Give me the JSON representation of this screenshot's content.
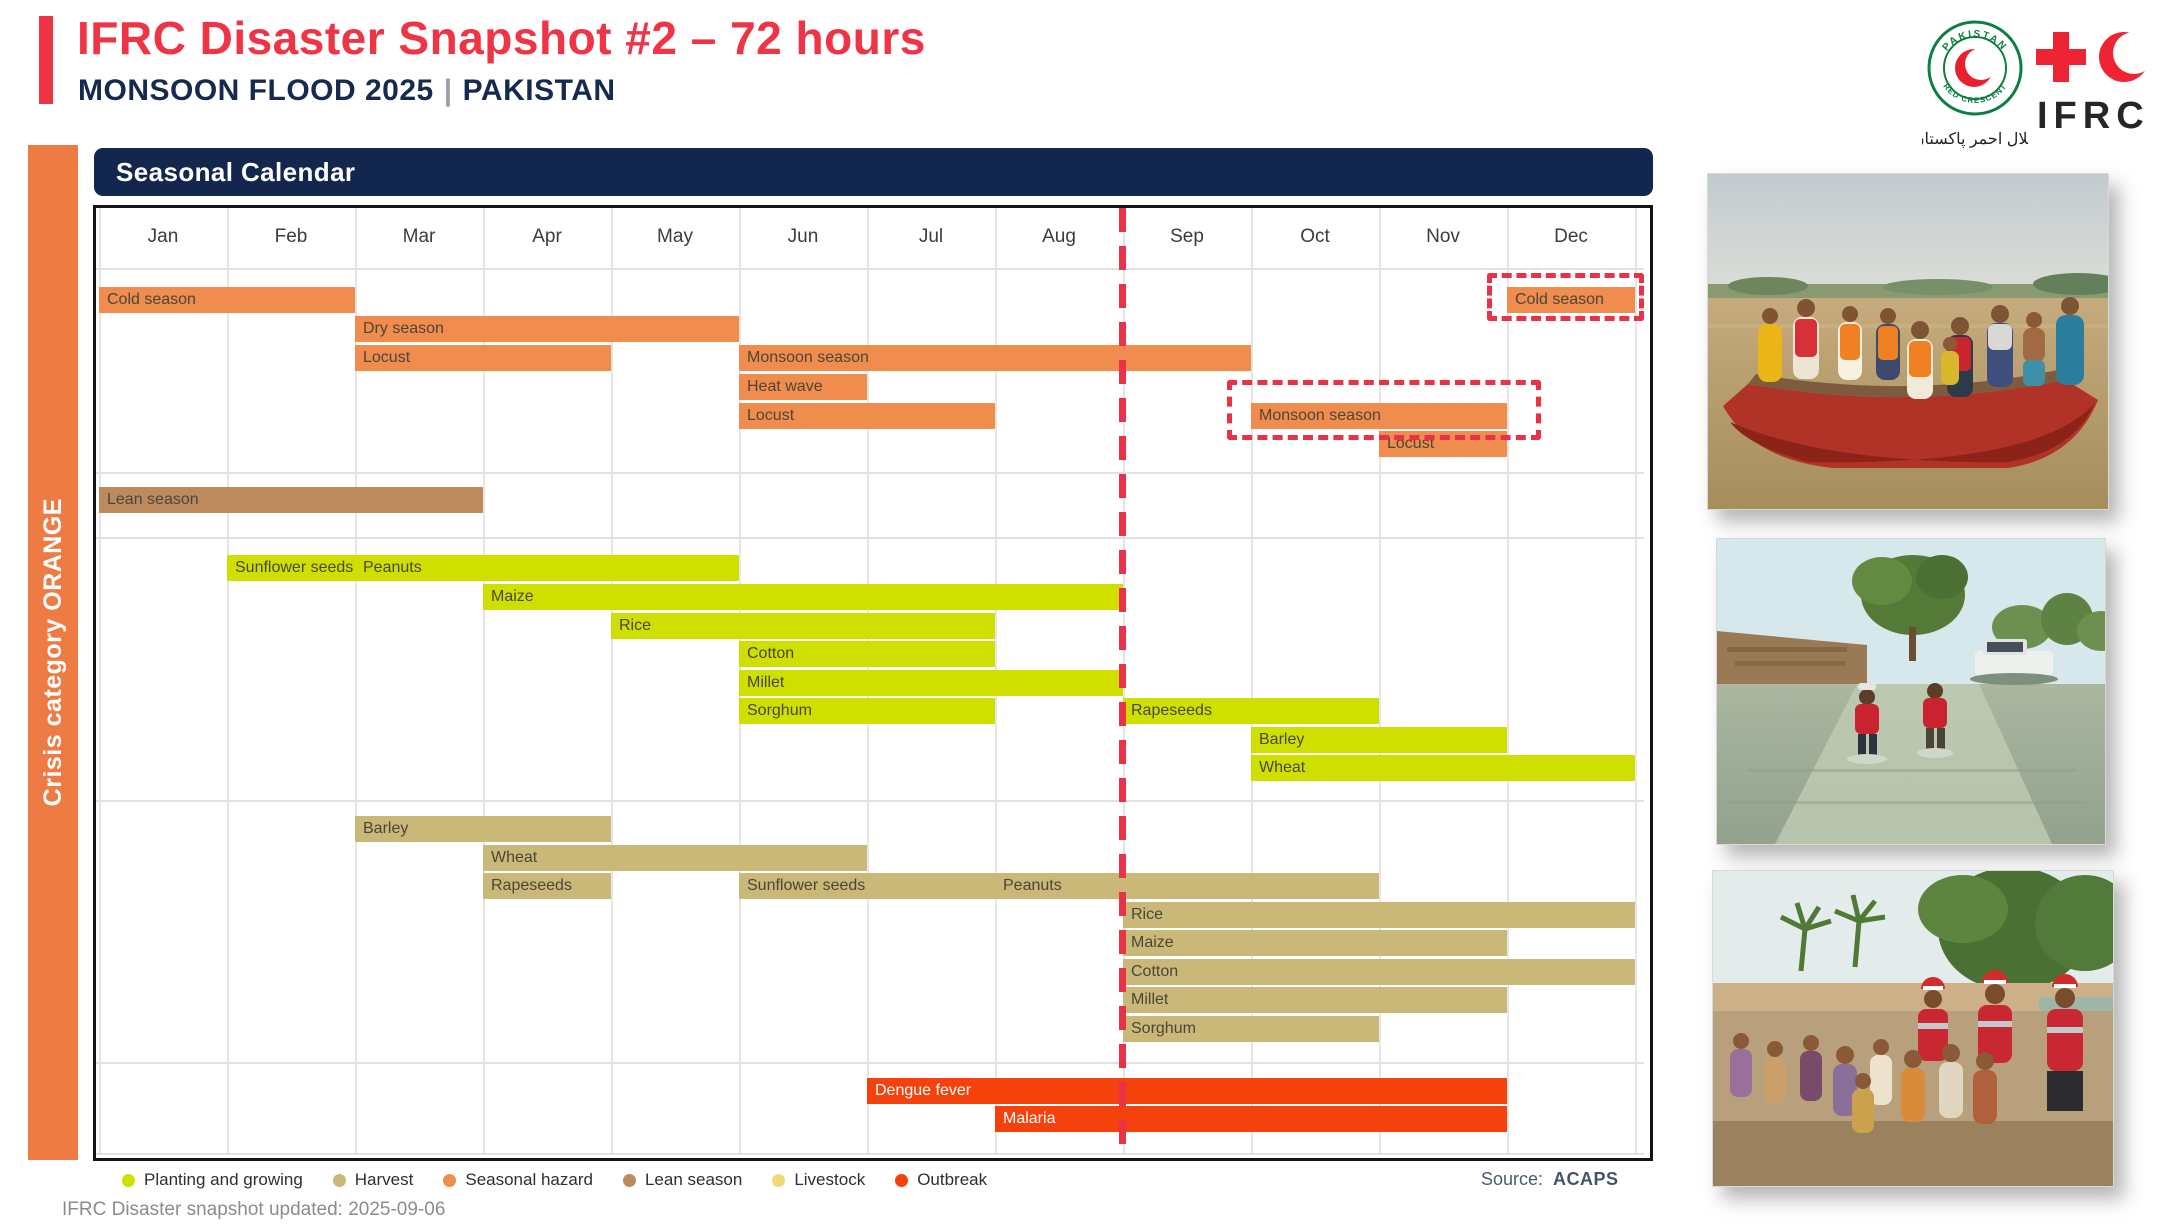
{
  "header": {
    "title": "IFRC Disaster Snapshot #2 – 72 hours",
    "subtitle_event": "MONSOON FLOOD 2025",
    "subtitle_sep": "|",
    "subtitle_country": "PAKISTAN"
  },
  "logos": {
    "prc_ring_top": "PAKISTAN",
    "prc_ring_bottom": "RED CRESCENT",
    "prc_urdu": "ہلال احمر پاکستان",
    "ifrc_label": "IFRC"
  },
  "sidebar": {
    "label": "Crisis category ORANGE"
  },
  "panel": {
    "title": "Seasonal Calendar"
  },
  "chart_data": {
    "type": "gantt",
    "title": "Seasonal Calendar",
    "months": [
      "Jan",
      "Feb",
      "Mar",
      "Apr",
      "May",
      "Jun",
      "Jul",
      "Aug",
      "Sep",
      "Oct",
      "Nov",
      "Dec"
    ],
    "today_line": {
      "at_month_start": "Sep",
      "style": "red-dashed-vertical"
    },
    "categories": {
      "hazard": {
        "label": "Seasonal hazard",
        "color": "#F08C4D"
      },
      "lean": {
        "label": "Lean season",
        "color": "#BC8A5D"
      },
      "planting": {
        "label": "Planting and growing",
        "color": "#CFE000"
      },
      "harvest": {
        "label": "Harvest",
        "color": "#C9B877"
      },
      "livestock": {
        "label": "Livestock",
        "color": "#F2D878"
      },
      "outbreak": {
        "label": "Outbreak",
        "color": "#F5420D"
      }
    },
    "rows": [
      {
        "bars": [
          {
            "label": "Cold season",
            "start": 1,
            "end": 2,
            "category": "hazard"
          },
          {
            "label": "Cold season",
            "start": 12,
            "end": 12,
            "category": "hazard",
            "highlighted": true
          }
        ]
      },
      {
        "bars": [
          {
            "label": "Dry season",
            "start": 3,
            "end": 5,
            "category": "hazard"
          }
        ]
      },
      {
        "bars": [
          {
            "label": "Locust",
            "start": 3,
            "end": 4,
            "category": "hazard"
          },
          {
            "label": "Monsoon season",
            "start": 6,
            "end": 9,
            "category": "hazard"
          }
        ]
      },
      {
        "bars": [
          {
            "label": "Heat wave",
            "start": 6,
            "end": 6,
            "category": "hazard"
          }
        ]
      },
      {
        "bars": [
          {
            "label": "Locust",
            "start": 6,
            "end": 7,
            "category": "hazard"
          },
          {
            "label": "Monsoon season",
            "start": 10,
            "end": 11,
            "category": "hazard",
            "highlighted": true
          }
        ]
      },
      {
        "bars": [
          {
            "label": "Locust",
            "start": 11,
            "end": 11,
            "category": "hazard"
          }
        ]
      },
      {
        "bars": [
          {
            "label": "Lean season",
            "start": 1,
            "end": 3,
            "category": "lean"
          }
        ]
      },
      {
        "bars": [
          {
            "label": "Sunflower seeds",
            "start": 2,
            "end": 2,
            "category": "planting"
          },
          {
            "label": "Peanuts",
            "start": 3,
            "end": 5,
            "category": "planting"
          }
        ]
      },
      {
        "bars": [
          {
            "label": "Maize",
            "start": 4,
            "end": 8,
            "category": "planting"
          }
        ]
      },
      {
        "bars": [
          {
            "label": "Rice",
            "start": 5,
            "end": 7,
            "category": "planting"
          }
        ]
      },
      {
        "bars": [
          {
            "label": "Cotton",
            "start": 6,
            "end": 7,
            "category": "planting"
          }
        ]
      },
      {
        "bars": [
          {
            "label": "Millet",
            "start": 6,
            "end": 8,
            "category": "planting"
          }
        ]
      },
      {
        "bars": [
          {
            "label": "Sorghum",
            "start": 6,
            "end": 7,
            "category": "planting"
          },
          {
            "label": "Rapeseeds",
            "start": 9,
            "end": 10,
            "category": "planting"
          }
        ]
      },
      {
        "bars": [
          {
            "label": "Barley",
            "start": 10,
            "end": 11,
            "category": "planting"
          }
        ]
      },
      {
        "bars": [
          {
            "label": "Wheat",
            "start": 10,
            "end": 12,
            "category": "planting"
          }
        ]
      },
      {
        "bars": [
          {
            "label": "Barley",
            "start": 3,
            "end": 4,
            "category": "harvest"
          }
        ]
      },
      {
        "bars": [
          {
            "label": "Wheat",
            "start": 4,
            "end": 6,
            "category": "harvest"
          }
        ]
      },
      {
        "bars": [
          {
            "label": "Rapeseeds",
            "start": 4,
            "end": 4,
            "category": "harvest"
          },
          {
            "label": "Sunflower seeds",
            "start": 6,
            "end": 7,
            "category": "harvest"
          },
          {
            "label": "Peanuts",
            "start": 8,
            "end": 10,
            "category": "harvest"
          }
        ]
      },
      {
        "bars": [
          {
            "label": "Rice",
            "start": 9,
            "end": 12,
            "category": "harvest"
          }
        ]
      },
      {
        "bars": [
          {
            "label": "Maize",
            "start": 9,
            "end": 11,
            "category": "harvest"
          }
        ]
      },
      {
        "bars": [
          {
            "label": "Cotton",
            "start": 9,
            "end": 12,
            "category": "harvest"
          }
        ]
      },
      {
        "bars": [
          {
            "label": "Millet",
            "start": 9,
            "end": 11,
            "category": "harvest"
          }
        ]
      },
      {
        "bars": [
          {
            "label": "Sorghum",
            "start": 9,
            "end": 10,
            "category": "harvest"
          }
        ]
      },
      {
        "bars": [
          {
            "label": "Dengue fever",
            "start": 7,
            "end": 11,
            "category": "outbreak"
          }
        ]
      },
      {
        "bars": [
          {
            "label": "Malaria",
            "start": 8,
            "end": 11,
            "category": "outbreak"
          }
        ]
      }
    ]
  },
  "legend": {
    "items": [
      {
        "label": "Planting and growing",
        "color": "#CFE000"
      },
      {
        "label": "Harvest",
        "color": "#C9B877"
      },
      {
        "label": "Seasonal hazard",
        "color": "#F08C4D"
      },
      {
        "label": "Lean season",
        "color": "#BC8A5D"
      },
      {
        "label": "Livestock",
        "color": "#F2D878"
      },
      {
        "label": "Outbreak",
        "color": "#F5420D"
      }
    ]
  },
  "source": {
    "label": "Source:",
    "value": "ACAPS"
  },
  "footer": {
    "text": "IFRC Disaster snapshot updated: 2025-09-06"
  },
  "photos": [
    {
      "name": "boat-evacuation-floodwater"
    },
    {
      "name": "volunteers-wading-flooded-road"
    },
    {
      "name": "community-group-with-volunteers"
    }
  ]
}
